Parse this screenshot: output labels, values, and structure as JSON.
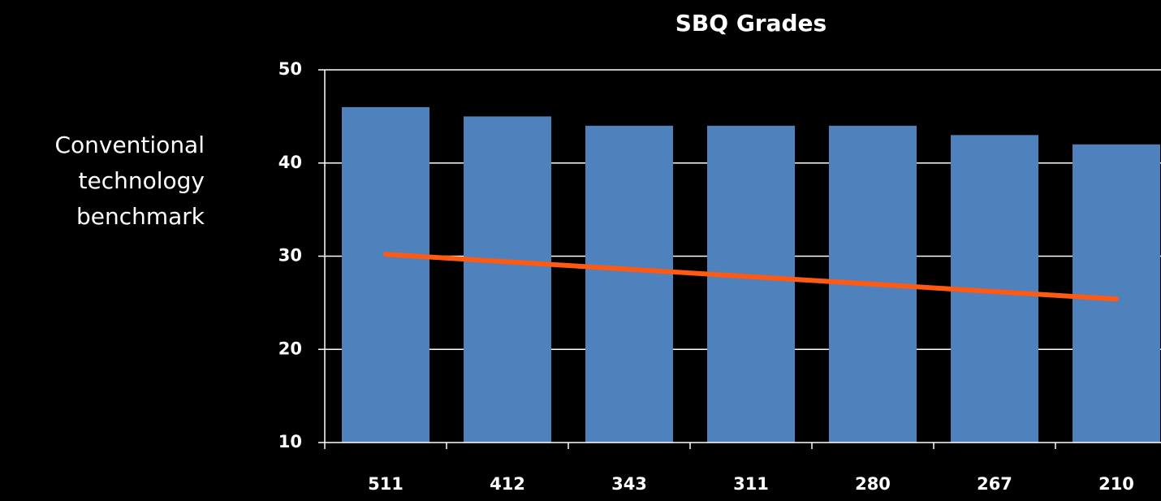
{
  "chart_data": {
    "type": "bar",
    "title": "SBQ Grades",
    "y_label": "Conventional technology benchmark",
    "categories": [
      "511",
      "412",
      "343",
      "311",
      "280",
      "267",
      "210"
    ],
    "values": [
      46,
      45,
      44,
      44,
      44,
      43,
      42
    ],
    "color": "#4f81bd",
    "trendline": {
      "color": "#ff5a14",
      "values": [
        30.2,
        29.4,
        28.6,
        27.8,
        27.0,
        26.2,
        25.4
      ]
    },
    "ylim": [
      10,
      50
    ],
    "yticks": [
      10,
      20,
      30,
      40,
      50
    ],
    "grid": true
  }
}
